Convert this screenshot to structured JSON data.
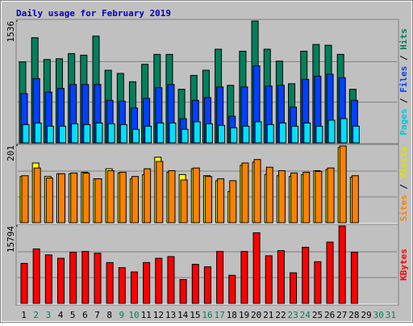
{
  "chart_data": [
    {
      "type": "bar",
      "title": "Daily usage for February 2019",
      "legend_separator": "/",
      "ylim": [
        0,
        1536
      ],
      "yticks": [
        1536
      ],
      "series": [
        {
          "name": "Hits",
          "color": "#00805c",
          "label_color": "#00805c",
          "values": [
            1020,
            1325,
            1050,
            1060,
            1125,
            1105,
            1345,
            915,
            875,
            770,
            990,
            1115,
            1115,
            675,
            850,
            915,
            1180,
            725,
            1155,
            1536,
            1180,
            1030,
            745,
            1155,
            1240,
            1230,
            1115,
            675,
            null,
            null,
            null
          ]
        },
        {
          "name": "Files",
          "color": "#0040ff",
          "label_color": "#0040ff",
          "values": [
            620,
            810,
            640,
            685,
            735,
            735,
            735,
            535,
            525,
            440,
            560,
            695,
            735,
            305,
            535,
            570,
            705,
            335,
            705,
            970,
            715,
            725,
            450,
            800,
            840,
            865,
            820,
            535,
            null,
            null,
            null
          ]
        },
        {
          "name": "Pages",
          "color": "#00e0ff",
          "label_color": "#00c8e0",
          "values": [
            230,
            250,
            210,
            210,
            240,
            230,
            250,
            240,
            230,
            170,
            210,
            250,
            250,
            170,
            265,
            240,
            220,
            190,
            210,
            265,
            230,
            250,
            210,
            250,
            210,
            285,
            305,
            210,
            null,
            null,
            null
          ]
        }
      ]
    },
    {
      "type": "bar",
      "legend_separator": "/",
      "ylim": [
        0,
        201
      ],
      "yticks": [
        201
      ],
      "series": [
        {
          "name": "Visits",
          "color": "#ffff00",
          "label_color": "#e0e000",
          "values": [
            120,
            155,
            120,
            127,
            127,
            131,
            114,
            140,
            129,
            114,
            125,
            170,
            131,
            125,
            140,
            122,
            109,
            81,
            149,
            157,
            125,
            122,
            120,
            125,
            135,
            138,
            195,
            118,
            null,
            null,
            null
          ]
        },
        {
          "name": "Sites",
          "color": "#ff8000",
          "label_color": "#ff8000",
          "values": [
            122,
            142,
            116,
            127,
            129,
            129,
            114,
            135,
            131,
            120,
            140,
            159,
            135,
            111,
            142,
            120,
            114,
            109,
            155,
            164,
            144,
            135,
            129,
            131,
            133,
            142,
            199,
            122,
            null,
            null,
            null
          ]
        }
      ]
    },
    {
      "type": "bar",
      "ylim": [
        0,
        15794
      ],
      "yticks": [
        15794
      ],
      "categories": [
        "1",
        "2",
        "3",
        "4",
        "5",
        "6",
        "7",
        "8",
        "9",
        "10",
        "11",
        "12",
        "13",
        "14",
        "15",
        "16",
        "17",
        "18",
        "19",
        "20",
        "21",
        "22",
        "23",
        "24",
        "25",
        "26",
        "27",
        "28",
        "29",
        "30",
        "31"
      ],
      "category_colors": [
        "#000000",
        "#00805c",
        "#00805c",
        "#000000",
        "#000000",
        "#000000",
        "#000000",
        "#000000",
        "#00805c",
        "#00805c",
        "#000000",
        "#000000",
        "#000000",
        "#000000",
        "#000000",
        "#00805c",
        "#00805c",
        "#000000",
        "#000000",
        "#000000",
        "#000000",
        "#000000",
        "#00805c",
        "#00805c",
        "#000000",
        "#000000",
        "#000000",
        "#000000",
        "#000000",
        "#00805c",
        "#00805c"
      ],
      "series": [
        {
          "name": "KBytes",
          "color": "#ff0000",
          "label_color": "#ff0000",
          "values": [
            8160,
            11110,
            9890,
            9200,
            10410,
            10590,
            10240,
            8330,
            7290,
            6420,
            8330,
            9200,
            9550,
            4860,
            7980,
            7460,
            10590,
            5730,
            10590,
            14400,
            9720,
            10760,
            6250,
            11450,
            8500,
            12500,
            15794,
            10410,
            null,
            null,
            null
          ]
        }
      ]
    }
  ]
}
